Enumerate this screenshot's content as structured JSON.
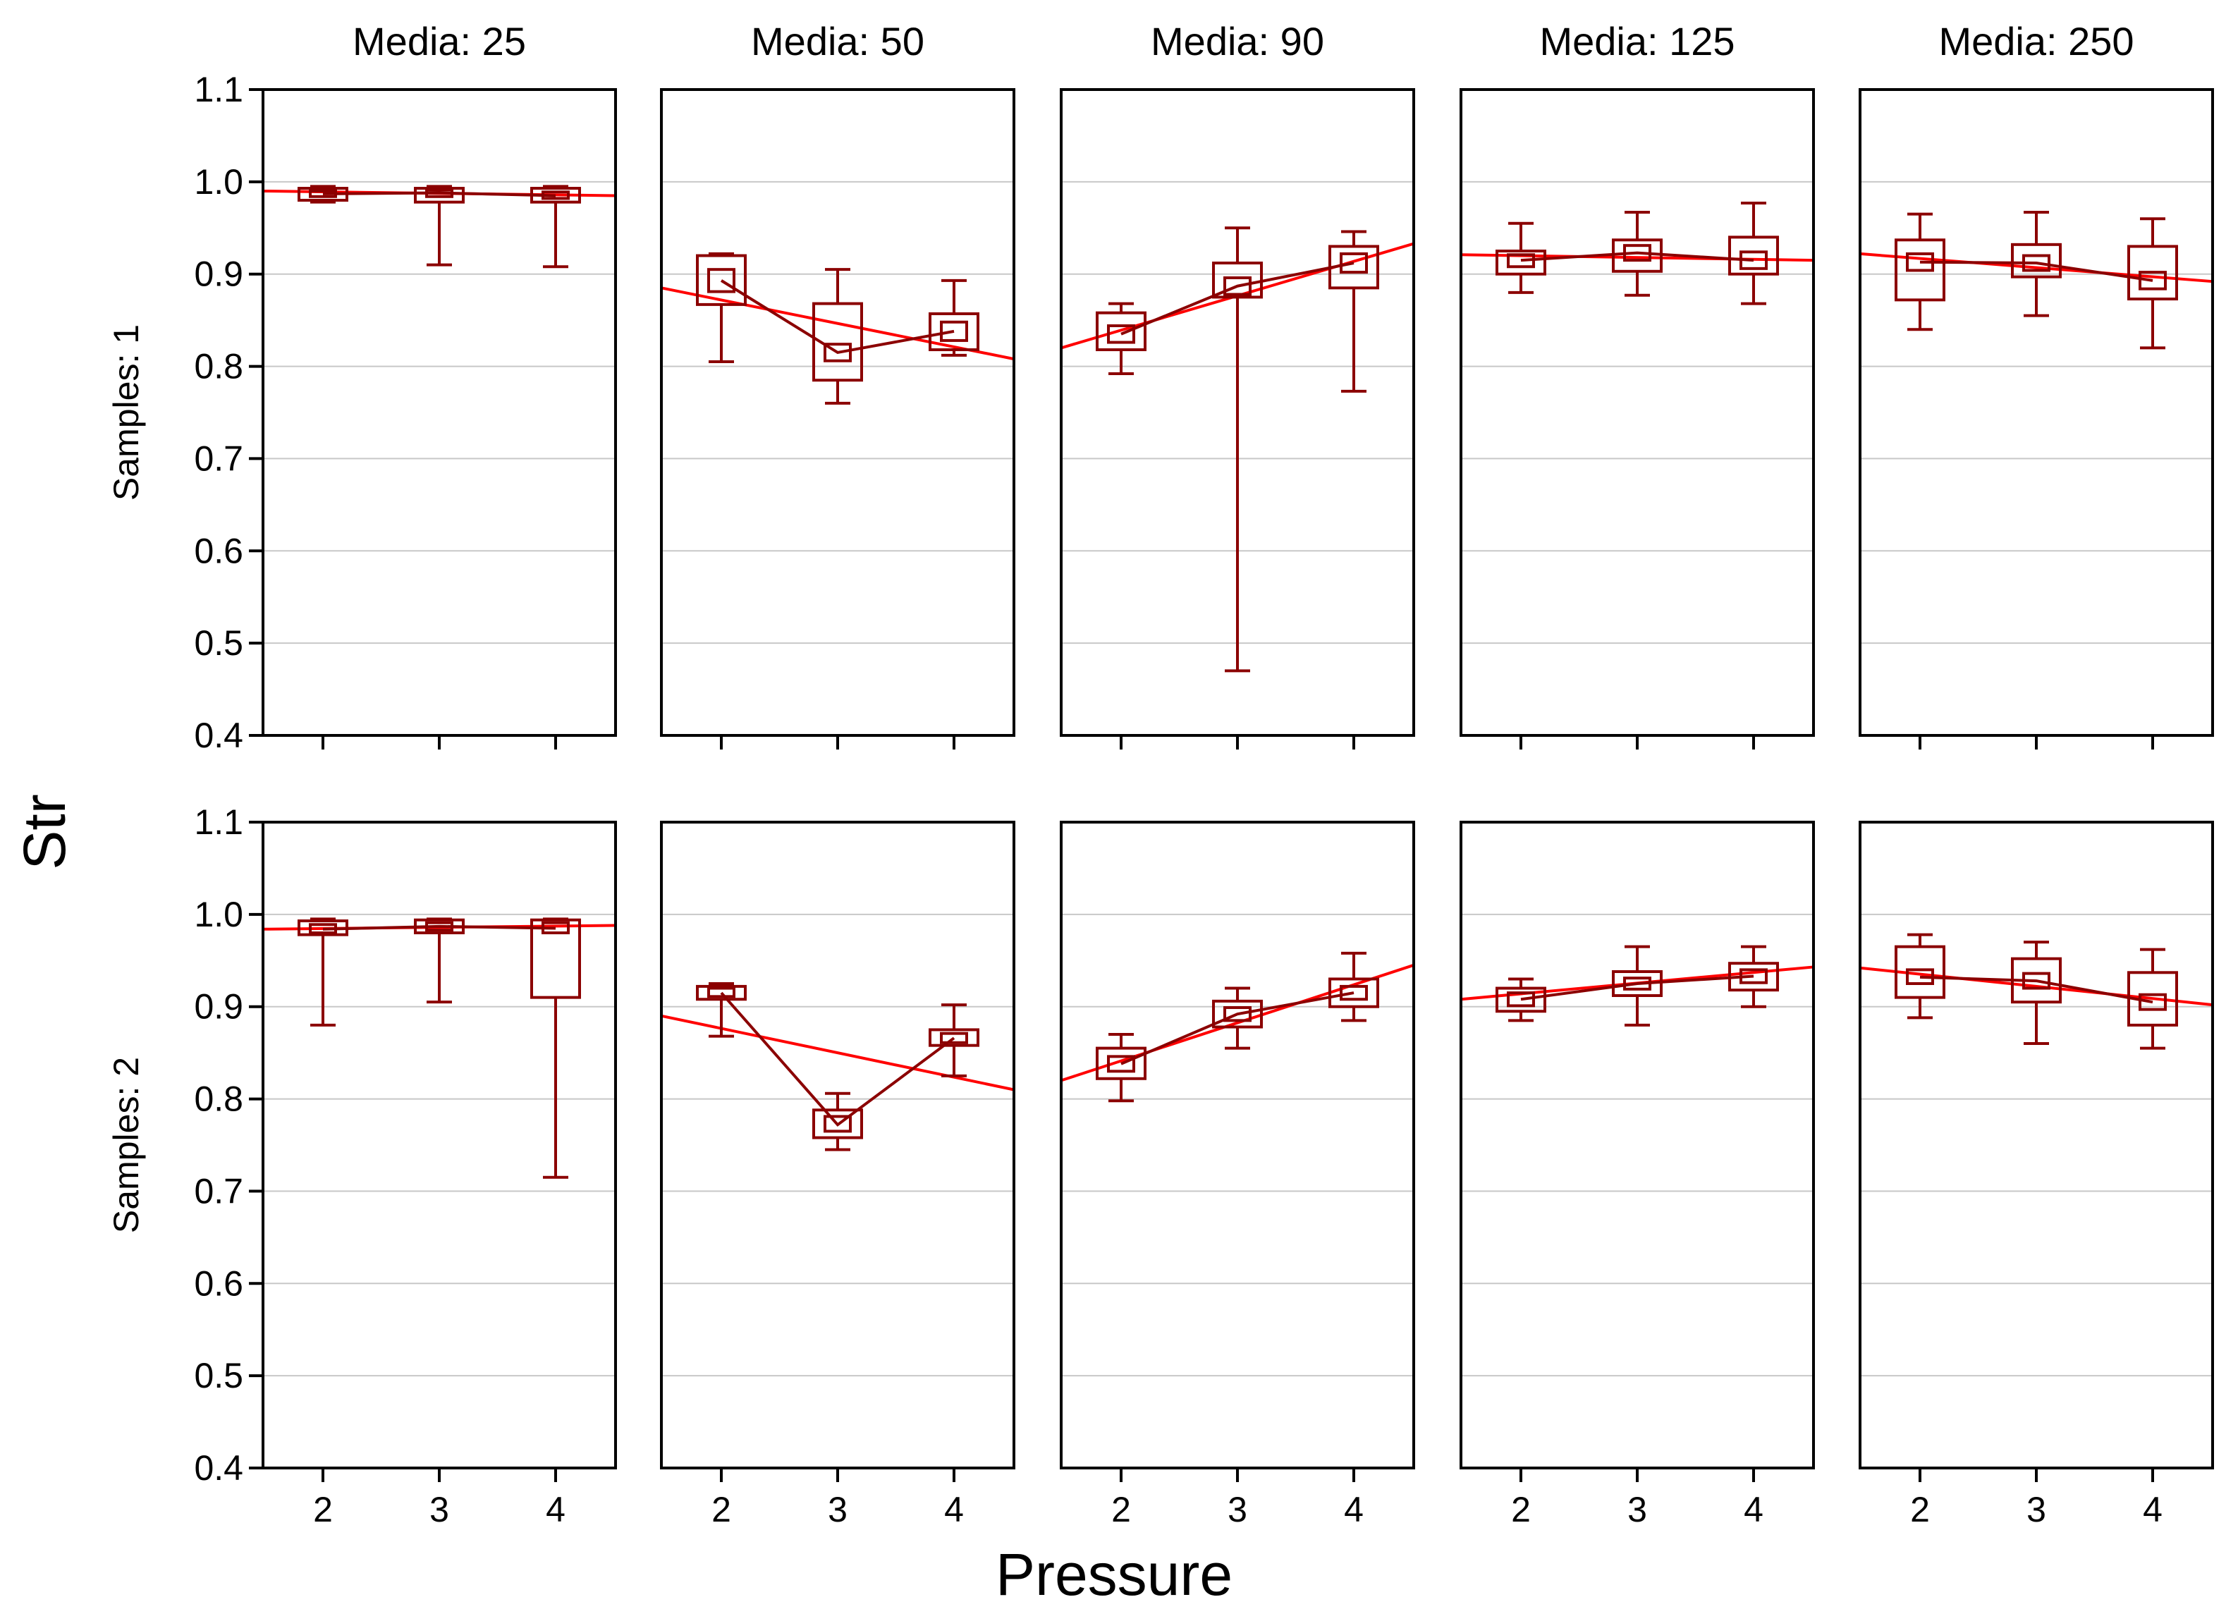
{
  "chart_data": {
    "type": "box-grid",
    "xlabel": "Pressure",
    "ylabel": "Str",
    "ylim": [
      0.4,
      1.1
    ],
    "yticks": [
      "0.4",
      "0.5",
      "0.6",
      "0.7",
      "0.8",
      "0.9",
      "1.0",
      "1.1"
    ],
    "x_categories": [
      "2",
      "3",
      "4"
    ],
    "columns": [
      "Media: 25",
      "Media: 50",
      "Media: 90",
      "Media: 125",
      "Media: 250"
    ],
    "rows": [
      "Samples: 1",
      "Samples: 2"
    ],
    "colors": {
      "box": "#8b0000",
      "fit": "#ff0000",
      "grid": "#c8c8c8"
    },
    "panels": [
      [
        {
          "fit": [
            0.99,
            0.985
          ],
          "groups": [
            {
              "x": 2,
              "mean": 0.987,
              "box": [
                0.98,
                0.993
              ],
              "inner": [
                0.984,
                0.99
              ],
              "whisker": [
                0.978,
                0.995
              ]
            },
            {
              "x": 3,
              "mean": 0.988,
              "box": [
                0.978,
                0.993
              ],
              "inner": [
                0.984,
                0.991
              ],
              "whisker": [
                0.91,
                0.995
              ]
            },
            {
              "x": 4,
              "mean": 0.985,
              "box": [
                0.978,
                0.993
              ],
              "inner": [
                0.982,
                0.989
              ],
              "whisker": [
                0.908,
                0.995
              ]
            }
          ]
        },
        {
          "fit": [
            0.885,
            0.808
          ],
          "groups": [
            {
              "x": 2,
              "mean": 0.893,
              "box": [
                0.867,
                0.92
              ],
              "inner": [
                0.881,
                0.905
              ],
              "whisker": [
                0.805,
                0.922
              ]
            },
            {
              "x": 3,
              "mean": 0.815,
              "box": [
                0.785,
                0.868
              ],
              "inner": [
                0.806,
                0.824
              ],
              "whisker": [
                0.76,
                0.905
              ]
            },
            {
              "x": 4,
              "mean": 0.838,
              "box": [
                0.818,
                0.857
              ],
              "inner": [
                0.828,
                0.848
              ],
              "whisker": [
                0.812,
                0.893
              ]
            }
          ]
        },
        {
          "fit": [
            0.82,
            0.933
          ],
          "groups": [
            {
              "x": 2,
              "mean": 0.835,
              "box": [
                0.818,
                0.858
              ],
              "inner": [
                0.826,
                0.844
              ],
              "whisker": [
                0.792,
                0.868
              ]
            },
            {
              "x": 3,
              "mean": 0.887,
              "box": [
                0.875,
                0.912
              ],
              "inner": [
                0.878,
                0.896
              ],
              "whisker": [
                0.47,
                0.95
              ]
            },
            {
              "x": 4,
              "mean": 0.912,
              "box": [
                0.885,
                0.93
              ],
              "inner": [
                0.902,
                0.922
              ],
              "whisker": [
                0.773,
                0.946
              ]
            }
          ]
        },
        {
          "fit": [
            0.921,
            0.915
          ],
          "groups": [
            {
              "x": 2,
              "mean": 0.915,
              "box": [
                0.9,
                0.925
              ],
              "inner": [
                0.908,
                0.921
              ],
              "whisker": [
                0.88,
                0.955
              ]
            },
            {
              "x": 3,
              "mean": 0.923,
              "box": [
                0.903,
                0.937
              ],
              "inner": [
                0.915,
                0.931
              ],
              "whisker": [
                0.877,
                0.967
              ]
            },
            {
              "x": 4,
              "mean": 0.915,
              "box": [
                0.9,
                0.94
              ],
              "inner": [
                0.906,
                0.924
              ],
              "whisker": [
                0.868,
                0.977
              ]
            }
          ]
        },
        {
          "fit": [
            0.922,
            0.892
          ],
          "groups": [
            {
              "x": 2,
              "mean": 0.913,
              "box": [
                0.872,
                0.937
              ],
              "inner": [
                0.904,
                0.922
              ],
              "whisker": [
                0.84,
                0.965
              ]
            },
            {
              "x": 3,
              "mean": 0.912,
              "box": [
                0.897,
                0.932
              ],
              "inner": [
                0.904,
                0.92
              ],
              "whisker": [
                0.855,
                0.967
              ]
            },
            {
              "x": 4,
              "mean": 0.893,
              "box": [
                0.873,
                0.93
              ],
              "inner": [
                0.884,
                0.902
              ],
              "whisker": [
                0.82,
                0.96
              ]
            }
          ]
        }
      ],
      [
        {
          "fit": [
            0.984,
            0.988
          ],
          "groups": [
            {
              "x": 2,
              "mean": 0.984,
              "box": [
                0.978,
                0.993
              ],
              "inner": [
                0.98,
                0.989
              ],
              "whisker": [
                0.88,
                0.995
              ]
            },
            {
              "x": 3,
              "mean": 0.987,
              "box": [
                0.98,
                0.994
              ],
              "inner": [
                0.983,
                0.991
              ],
              "whisker": [
                0.905,
                0.995
              ]
            },
            {
              "x": 4,
              "mean": 0.985,
              "box": [
                0.91,
                0.994
              ],
              "inner": [
                0.98,
                0.991
              ],
              "whisker": [
                0.715,
                0.995
              ]
            }
          ]
        },
        {
          "fit": [
            0.89,
            0.81
          ],
          "groups": [
            {
              "x": 2,
              "mean": 0.915,
              "box": [
                0.908,
                0.922
              ],
              "inner": [
                0.911,
                0.92
              ],
              "whisker": [
                0.868,
                0.925
              ]
            },
            {
              "x": 3,
              "mean": 0.772,
              "box": [
                0.758,
                0.788
              ],
              "inner": [
                0.765,
                0.781
              ],
              "whisker": [
                0.745,
                0.806
              ]
            },
            {
              "x": 4,
              "mean": 0.866,
              "box": [
                0.858,
                0.875
              ],
              "inner": [
                0.861,
                0.871
              ],
              "whisker": [
                0.825,
                0.902
              ]
            }
          ]
        },
        {
          "fit": [
            0.82,
            0.945
          ],
          "groups": [
            {
              "x": 2,
              "mean": 0.838,
              "box": [
                0.822,
                0.855
              ],
              "inner": [
                0.83,
                0.846
              ],
              "whisker": [
                0.798,
                0.87
              ]
            },
            {
              "x": 3,
              "mean": 0.892,
              "box": [
                0.878,
                0.906
              ],
              "inner": [
                0.885,
                0.899
              ],
              "whisker": [
                0.855,
                0.92
              ]
            },
            {
              "x": 4,
              "mean": 0.915,
              "box": [
                0.9,
                0.93
              ],
              "inner": [
                0.908,
                0.922
              ],
              "whisker": [
                0.885,
                0.958
              ]
            }
          ]
        },
        {
          "fit": [
            0.908,
            0.943
          ],
          "groups": [
            {
              "x": 2,
              "mean": 0.908,
              "box": [
                0.895,
                0.92
              ],
              "inner": [
                0.901,
                0.915
              ],
              "whisker": [
                0.885,
                0.93
              ]
            },
            {
              "x": 3,
              "mean": 0.925,
              "box": [
                0.912,
                0.938
              ],
              "inner": [
                0.919,
                0.931
              ],
              "whisker": [
                0.88,
                0.965
              ]
            },
            {
              "x": 4,
              "mean": 0.933,
              "box": [
                0.918,
                0.947
              ],
              "inner": [
                0.926,
                0.94
              ],
              "whisker": [
                0.9,
                0.965
              ]
            }
          ]
        },
        {
          "fit": [
            0.942,
            0.902
          ],
          "groups": [
            {
              "x": 2,
              "mean": 0.932,
              "box": [
                0.91,
                0.965
              ],
              "inner": [
                0.925,
                0.94
              ],
              "whisker": [
                0.888,
                0.978
              ]
            },
            {
              "x": 3,
              "mean": 0.928,
              "box": [
                0.905,
                0.952
              ],
              "inner": [
                0.92,
                0.936
              ],
              "whisker": [
                0.86,
                0.97
              ]
            },
            {
              "x": 4,
              "mean": 0.905,
              "box": [
                0.88,
                0.937
              ],
              "inner": [
                0.897,
                0.913
              ],
              "whisker": [
                0.855,
                0.962
              ]
            }
          ]
        }
      ]
    ]
  }
}
